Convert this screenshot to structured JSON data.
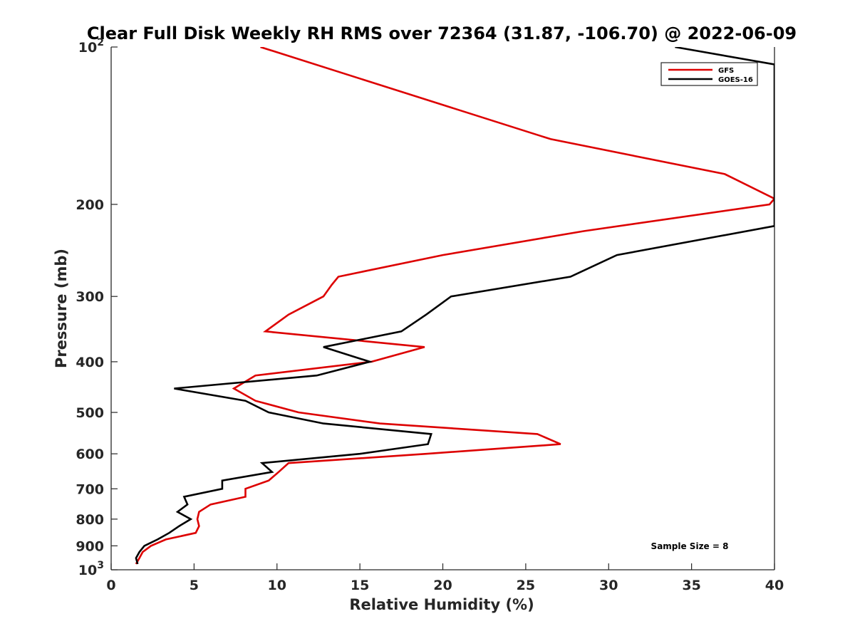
{
  "chart_data": {
    "type": "line",
    "title": "Clear Full Disk Weekly RH RMS over 72364 (31.87, -106.70) @ 2022-06-09",
    "xlabel": "Relative Humidity (%)",
    "ylabel": "Pressure (mb)",
    "xlim": [
      0,
      40
    ],
    "ylim": [
      100,
      1000
    ],
    "yscale": "log",
    "y_reversed": true,
    "x_ticks": [
      "0",
      "5",
      "10",
      "15",
      "20",
      "25",
      "30",
      "35",
      "40"
    ],
    "x_tick_values": [
      0,
      5,
      10,
      15,
      20,
      25,
      30,
      35,
      40
    ],
    "y_tick_values": [
      100,
      200,
      300,
      400,
      500,
      600,
      700,
      800,
      900,
      1000
    ],
    "y_ticks": [
      {
        "base": "10",
        "exp": "2"
      },
      {
        "base": "200",
        "exp": ""
      },
      {
        "base": "300",
        "exp": ""
      },
      {
        "base": "400",
        "exp": ""
      },
      {
        "base": "500",
        "exp": ""
      },
      {
        "base": "600",
        "exp": ""
      },
      {
        "base": "700",
        "exp": ""
      },
      {
        "base": "800",
        "exp": ""
      },
      {
        "base": "900",
        "exp": ""
      },
      {
        "base": "10",
        "exp": "3"
      }
    ],
    "grid": false,
    "legend_position": "top-right",
    "annotation": "Sample Size = 8",
    "series": [
      {
        "name": "GFS",
        "color": "#dd0000",
        "points": [
          [
            9.0,
            100
          ],
          [
            26.5,
            150
          ],
          [
            37.0,
            175
          ],
          [
            40.0,
            195
          ],
          [
            40.0,
            195
          ],
          [
            39.7,
            200
          ],
          [
            28.5,
            225
          ],
          [
            20.0,
            250
          ],
          [
            13.7,
            275
          ],
          [
            13.3,
            285
          ],
          [
            12.8,
            300
          ],
          [
            10.7,
            325
          ],
          [
            9.3,
            350
          ],
          [
            18.9,
            375
          ],
          [
            15.7,
            400
          ],
          [
            8.7,
            425
          ],
          [
            7.4,
            450
          ],
          [
            8.7,
            475
          ],
          [
            11.3,
            500
          ],
          [
            16.2,
            525
          ],
          [
            25.7,
            550
          ],
          [
            27.1,
            575
          ],
          [
            19.0,
            600
          ],
          [
            10.7,
            625
          ],
          [
            10.1,
            650
          ],
          [
            9.5,
            675
          ],
          [
            8.1,
            700
          ],
          [
            8.1,
            725
          ],
          [
            6.0,
            750
          ],
          [
            5.3,
            775
          ],
          [
            5.2,
            800
          ],
          [
            5.3,
            825
          ],
          [
            5.1,
            850
          ],
          [
            3.3,
            875
          ],
          [
            2.4,
            900
          ],
          [
            1.9,
            925
          ],
          [
            1.7,
            950
          ],
          [
            1.5,
            975
          ]
        ]
      },
      {
        "name": "GOES-16",
        "color": "#000000",
        "points": [
          [
            34.0,
            100
          ],
          [
            40.0,
            108
          ],
          [
            40.0,
            220
          ],
          [
            30.5,
            250
          ],
          [
            27.7,
            275
          ],
          [
            20.5,
            300
          ],
          [
            19.0,
            325
          ],
          [
            17.5,
            350
          ],
          [
            12.8,
            375
          ],
          [
            15.6,
            400
          ],
          [
            12.4,
            425
          ],
          [
            3.8,
            450
          ],
          [
            8.1,
            475
          ],
          [
            9.5,
            500
          ],
          [
            12.8,
            525
          ],
          [
            19.3,
            550
          ],
          [
            19.1,
            575
          ],
          [
            15.0,
            600
          ],
          [
            9.1,
            625
          ],
          [
            9.7,
            650
          ],
          [
            6.7,
            675
          ],
          [
            6.7,
            700
          ],
          [
            4.4,
            725
          ],
          [
            4.6,
            750
          ],
          [
            4.0,
            775
          ],
          [
            4.8,
            800
          ],
          [
            4.1,
            825
          ],
          [
            3.5,
            850
          ],
          [
            2.8,
            875
          ],
          [
            2.0,
            900
          ],
          [
            1.7,
            925
          ],
          [
            1.5,
            950
          ],
          [
            1.6,
            975
          ]
        ]
      }
    ]
  }
}
